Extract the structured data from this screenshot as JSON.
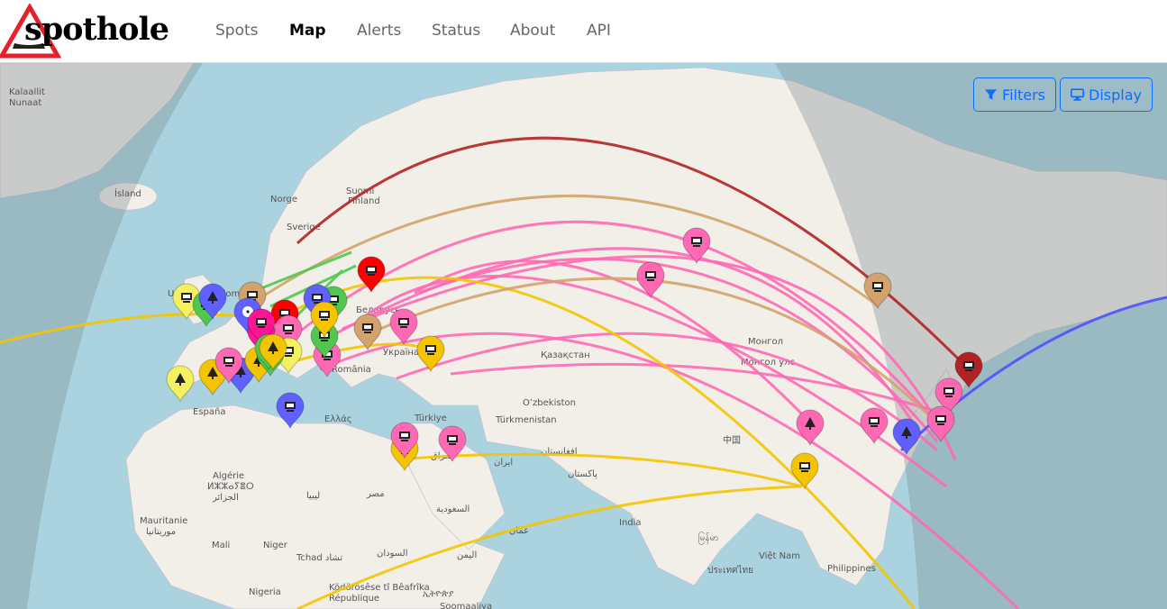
{
  "brand": {
    "name": "spothole"
  },
  "nav": {
    "items": [
      {
        "label": "Spots",
        "active": false
      },
      {
        "label": "Map",
        "active": true
      },
      {
        "label": "Alerts",
        "active": false
      },
      {
        "label": "Status",
        "active": false
      },
      {
        "label": "About",
        "active": false
      },
      {
        "label": "API",
        "active": false
      }
    ]
  },
  "controls": {
    "filters_label": "Filters",
    "display_label": "Display",
    "accent": "#0d6efd"
  },
  "map": {
    "colors": {
      "ocean": "#aad3df",
      "land": "#f2efe9",
      "night": "#8a8a8a"
    },
    "place_labels": [
      "Kalaallit",
      "Nunaat",
      "Ísland",
      "Norge",
      "Sverige",
      "Suomi",
      "Finland",
      "Беларусь",
      "Україна",
      "România",
      "España",
      "Ελλάς",
      "Türkiye",
      "Қазақстан",
      "Монгол",
      "Монгол улс",
      "Oʻzbekiston",
      "Türkmenistan",
      "中国",
      "Algérie",
      "ⵍⵣⵣⴰⵢⴻⵔ",
      "الجزائر",
      "ليبيا",
      "مصر",
      "العراق",
      "ایران",
      "افغانستان",
      "پاکستان",
      "السعودية",
      "عمان",
      "India",
      "Mauritanie",
      "موريتانيا",
      "Mali",
      "Niger",
      "Tchad تشاد",
      "السودان",
      "اليمن",
      "Nigeria",
      "ኢትዮጵያ",
      "Soomaaliya",
      "Ködörösêse tî Bêafrîka",
      "République",
      "မြန်မာ",
      "ประเทศไทย",
      "Việt Nam",
      "Philippines",
      "United Kingdom"
    ],
    "spots": [
      {
        "color": "#ff69b4",
        "icon": "monitor"
      },
      {
        "color": "#ff69b4",
        "icon": "monitor"
      },
      {
        "color": "#d2a36c",
        "icon": "monitor"
      },
      {
        "color": "#ff0000",
        "icon": "monitor"
      },
      {
        "color": "#ff69b4",
        "icon": "monitor"
      },
      {
        "color": "#d2a36c",
        "icon": "monitor"
      },
      {
        "color": "#f5c400",
        "icon": "monitor"
      },
      {
        "color": "#b22222",
        "icon": "monitor"
      },
      {
        "color": "#ff69b4",
        "icon": "monitor"
      },
      {
        "color": "#ff69b4",
        "icon": "monitor"
      },
      {
        "color": "#ff69b4",
        "icon": "monitor"
      },
      {
        "color": "#ff69b4",
        "icon": "tree"
      },
      {
        "color": "#6060ff",
        "icon": "tree"
      },
      {
        "color": "#ff69b4",
        "icon": "monitor"
      },
      {
        "color": "#f5c400",
        "icon": "monitor"
      },
      {
        "color": "#ff69b4",
        "icon": "monitor"
      },
      {
        "color": "#f5c400",
        "icon": "monitor"
      },
      {
        "color": "#ff69b4",
        "icon": "monitor"
      },
      {
        "color": "#6060ff",
        "icon": "monitor"
      },
      {
        "color": "#f5f060",
        "icon": "tree"
      },
      {
        "color": "#f5c400",
        "icon": "tree"
      },
      {
        "color": "#6060ff",
        "icon": "tree"
      },
      {
        "color": "#f5c400",
        "icon": "tree"
      },
      {
        "color": "#f5f060",
        "icon": "monitor"
      },
      {
        "color": "#50c850",
        "icon": "monitor"
      },
      {
        "color": "#6060ff",
        "icon": "tree"
      },
      {
        "color": "#d2a36c",
        "icon": "monitor"
      },
      {
        "color": "#6060ff",
        "icon": "radiation"
      },
      {
        "color": "#ff0000",
        "icon": "monitor"
      },
      {
        "color": "#ff1493",
        "icon": "mountain"
      },
      {
        "color": "#ff69b4",
        "icon": "monitor"
      },
      {
        "color": "#50c850",
        "icon": "monitor"
      },
      {
        "color": "#f5f060",
        "icon": "monitor"
      },
      {
        "color": "#ff69b4",
        "icon": "monitor"
      },
      {
        "color": "#6060ff",
        "icon": "monitor"
      },
      {
        "color": "#50c850",
        "icon": "monitor"
      },
      {
        "color": "#f5c400",
        "icon": "monitor"
      },
      {
        "color": "#50c850",
        "icon": "monitor"
      },
      {
        "color": "#ff1493",
        "icon": "monitor"
      },
      {
        "color": "#50c850",
        "icon": "tree"
      },
      {
        "color": "#f5c400",
        "icon": "tree"
      }
    ],
    "path_colors": [
      "#ff69b4",
      "#f5c400",
      "#d2a36c",
      "#b22222",
      "#5050ff",
      "#50c850"
    ]
  }
}
